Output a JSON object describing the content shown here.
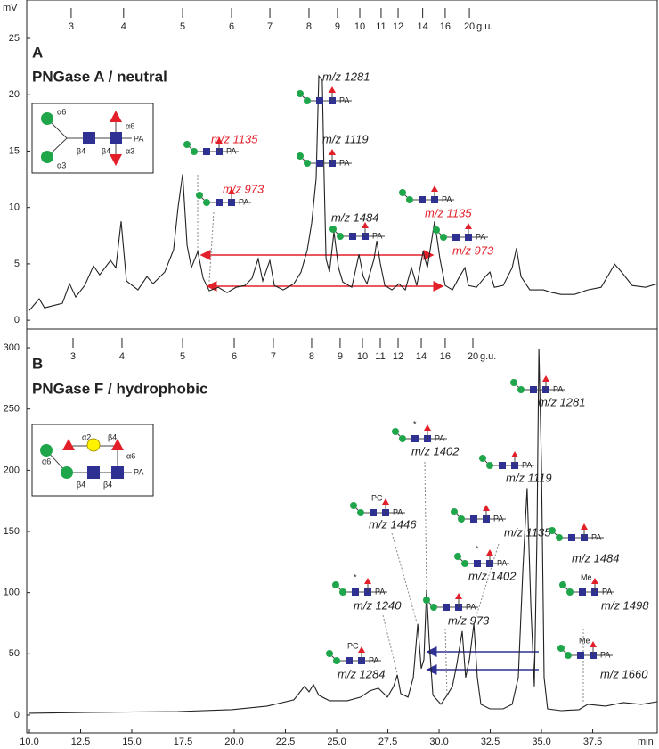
{
  "chart_data": [
    {
      "type": "line",
      "panel_label": "A",
      "title": "PNGase A / neutral",
      "y_unit": "mV",
      "color": "#222222",
      "xlim": [
        10,
        40.65
      ],
      "ylim": [
        -0.7,
        28.4
      ],
      "yticks": [
        0,
        5,
        10,
        15,
        20,
        25
      ],
      "gu_ticks": [
        {
          "value": 12.04,
          "label": "3"
        },
        {
          "value": 14.6,
          "label": "4"
        },
        {
          "value": 17.48,
          "label": "5"
        },
        {
          "value": 19.87,
          "label": "6"
        },
        {
          "value": 21.74,
          "label": "7"
        },
        {
          "value": 23.65,
          "label": "8"
        },
        {
          "value": 25.04,
          "label": "9"
        },
        {
          "value": 26.13,
          "label": "10"
        },
        {
          "value": 27.17,
          "label": "11"
        },
        {
          "value": 28.0,
          "label": "12"
        },
        {
          "value": 29.2,
          "label": "14"
        },
        {
          "value": 30.3,
          "label": "16"
        },
        {
          "value": 31.48,
          "label": "20"
        }
      ],
      "gu_label": "g.u.",
      "x": [
        10.0,
        10.48,
        10.74,
        11.61,
        11.96,
        12.26,
        12.7,
        13.13,
        13.43,
        13.96,
        14.22,
        14.48,
        14.74,
        15.3,
        15.74,
        16.04,
        16.61,
        17.04,
        17.26,
        17.48,
        17.7,
        17.91,
        18.22,
        18.48,
        18.78,
        19.22,
        19.65,
        20.09,
        20.52,
        20.87,
        21.17,
        21.39,
        21.74,
        21.96,
        22.39,
        22.91,
        23.26,
        23.57,
        23.78,
        24.0,
        24.13,
        24.3,
        24.39,
        24.48,
        24.65,
        24.87,
        25.09,
        25.3,
        25.74,
        26.09,
        26.3,
        26.48,
        26.83,
        26.96,
        27.13,
        27.35,
        27.7,
        28.04,
        28.35,
        28.65,
        28.91,
        29.22,
        29.43,
        29.78,
        30.04,
        30.3,
        30.65,
        31.0,
        31.26,
        31.43,
        31.83,
        32.26,
        32.48,
        32.7,
        33.13,
        33.57,
        33.78,
        34.0,
        34.43,
        35.09,
        35.52,
        35.96,
        36.61,
        37.26,
        37.91,
        38.35,
        38.57,
        38.91,
        39.43,
        40.09,
        40.65
      ],
      "values": [
        0.87,
        1.9,
        1.1,
        1.5,
        3.24,
        2.06,
        3.08,
        4.82,
        4.03,
        5.3,
        4.66,
        8.77,
        3.48,
        2.69,
        3.87,
        3.24,
        4.27,
        6.25,
        10.04,
        12.96,
        6.64,
        4.66,
        6.09,
        3.72,
        2.61,
        2.92,
        2.45,
        2.92,
        3.08,
        3.72,
        5.45,
        3.48,
        5.3,
        3.08,
        2.69,
        3.24,
        4.27,
        6.25,
        8.62,
        12.57,
        21.66,
        21.26,
        12.57,
        5.45,
        4.27,
        7.83,
        4.66,
        3.4,
        2.92,
        5.85,
        3.87,
        3.24,
        5.45,
        7.04,
        5.06,
        3.08,
        2.69,
        3.24,
        2.69,
        4.66,
        3.08,
        6.09,
        4.66,
        8.77,
        5.45,
        3.08,
        2.69,
        3.87,
        4.66,
        3.08,
        2.92,
        3.87,
        4.27,
        2.92,
        3.08,
        4.66,
        6.4,
        3.87,
        2.69,
        2.69,
        2.45,
        2.29,
        2.29,
        2.69,
        2.92,
        4.27,
        4.98,
        4.27,
        3.08,
        2.92,
        3.24
      ],
      "annotations": [
        {
          "text": "m/z 1281",
          "color": "#222222",
          "end": "PA"
        },
        {
          "text": "m/z 1119",
          "color": "#222222",
          "end": "PA"
        },
        {
          "text": "m/z 1135",
          "color": "#e3202a",
          "end": "PA"
        },
        {
          "text": "m/z 973",
          "color": "#e3202a",
          "end": "PA"
        },
        {
          "text": "m/z 1484",
          "color": "#222222",
          "end": "PA"
        },
        {
          "text": "m/z 1135",
          "color": "#e3202a",
          "end": "PA"
        },
        {
          "text": "m/z 973",
          "color": "#e3202a",
          "end": "PA"
        }
      ],
      "structure": {
        "labels": [
          "α6",
          "α3",
          "β4",
          "β4",
          "α6",
          "α3",
          "PA"
        ]
      }
    },
    {
      "type": "line",
      "panel_label": "B",
      "title": "PNGase F / hydrophobic",
      "color": "#222222",
      "xlim": [
        10,
        40.65
      ],
      "ylim": [
        -14.6,
        314.6
      ],
      "yticks": [
        0,
        50,
        100,
        150,
        200,
        250,
        300
      ],
      "xticks": [
        {
          "value": 10,
          "label": "10.0"
        },
        12.5,
        {
          "value": 15,
          "label": "15.0"
        },
        17.5,
        {
          "value": 20,
          "label": "20.0"
        },
        22.5,
        {
          "value": 25,
          "label": "25.0"
        },
        27.5,
        {
          "value": 30,
          "label": "30.0"
        },
        32.5,
        {
          "value": 35,
          "label": "35.0"
        },
        37.5
      ],
      "xlabel": "min",
      "gu_ticks": [
        {
          "value": 12.13,
          "label": "3"
        },
        {
          "value": 14.52,
          "label": "4"
        },
        {
          "value": 17.48,
          "label": "5"
        },
        {
          "value": 20.0,
          "label": "6"
        },
        {
          "value": 21.91,
          "label": "7"
        },
        {
          "value": 23.78,
          "label": "8"
        },
        {
          "value": 25.17,
          "label": "9"
        },
        {
          "value": 26.26,
          "label": "10"
        },
        {
          "value": 27.13,
          "label": "11"
        },
        {
          "value": 28.0,
          "label": "12"
        },
        {
          "value": 29.13,
          "label": "14"
        },
        {
          "value": 30.3,
          "label": "16"
        },
        {
          "value": 31.65,
          "label": "20"
        }
      ],
      "gu_label": "g.u.",
      "x": [
        10.0,
        12.91,
        17.26,
        19.87,
        21.61,
        22.91,
        23.43,
        23.65,
        23.87,
        24.13,
        24.65,
        25.52,
        26.17,
        26.61,
        27.04,
        27.48,
        27.78,
        27.96,
        28.13,
        28.48,
        28.74,
        28.96,
        29.13,
        29.26,
        29.39,
        29.52,
        29.7,
        30.09,
        30.39,
        30.65,
        30.87,
        31.13,
        31.3,
        31.48,
        31.7,
        31.87,
        32.04,
        32.48,
        33.13,
        33.57,
        33.87,
        34.09,
        34.3,
        34.48,
        34.65,
        34.78,
        34.87,
        35.0,
        35.13,
        35.3,
        35.96,
        36.83,
        37.26,
        38.13,
        39.0,
        39.87,
        40.65
      ],
      "values": [
        1.5,
        2.2,
        2.9,
        4.4,
        7.3,
        12.4,
        23.4,
        19.0,
        24.8,
        16.1,
        11.7,
        11.7,
        14.6,
        19.7,
        21.9,
        14.6,
        23.4,
        32.8,
        17.5,
        14.6,
        30.7,
        74.5,
        38.0,
        45.3,
        102.2,
        59.9,
        16.1,
        8.8,
        16.1,
        23.4,
        41.6,
        68.6,
        30.7,
        45.3,
        74.5,
        30.7,
        8.8,
        5.1,
        5.1,
        8.8,
        30.7,
        118.2,
        185.4,
        89.1,
        23.4,
        147.4,
        299.3,
        205.8,
        30.7,
        5.1,
        3.6,
        4.4,
        8.8,
        7.3,
        10.2,
        8.8,
        10.9
      ],
      "annotations": [
        {
          "text": "m/z 1281",
          "color": "#222222",
          "end": "PA"
        },
        {
          "text": "m/z 1402",
          "color": "#222222",
          "end": "PA",
          "note": "*"
        },
        {
          "text": "m/z 1119",
          "color": "#222222",
          "end": "PA"
        },
        {
          "text": "m/z 1446",
          "color": "#222222",
          "end": "PA",
          "note": "PC"
        },
        {
          "text": "m/z 1135",
          "color": "#222222",
          "end": "PA"
        },
        {
          "text": "m/z 1484",
          "color": "#222222",
          "end": "PA"
        },
        {
          "text": "m/z 1402",
          "color": "#222222",
          "end": "PA",
          "note": "*"
        },
        {
          "text": "m/z 1240",
          "color": "#222222",
          "end": "PA",
          "note": "*"
        },
        {
          "text": "m/z 973",
          "color": "#222222",
          "end": "PA"
        },
        {
          "text": "m/z 1498",
          "color": "#222222",
          "end": "PA",
          "note": "Me"
        },
        {
          "text": "m/z 1284",
          "color": "#222222",
          "end": "PA",
          "note": "PC"
        },
        {
          "text": "m/z 1660",
          "color": "#222222",
          "end": "PA",
          "note": "Me"
        }
      ],
      "structure": {
        "labels": [
          "α2",
          "β4",
          "α6",
          "α6",
          "β4",
          "β4",
          "PA"
        ]
      }
    }
  ]
}
